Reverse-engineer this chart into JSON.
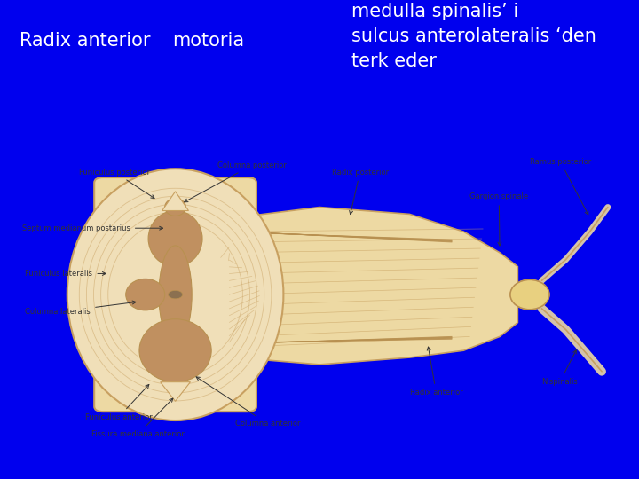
{
  "bg_color": "#0000EE",
  "header_text_color": "#FFFFFF",
  "header_text1": "Radix anterior",
  "header_text2": "motoria",
  "header_text3": "medulla spinalis’ i\nsulcus anterolateralis ‘den\nterk eder",
  "header_fontsize": 15,
  "fig_width": 7.2,
  "fig_height": 5.4,
  "dpi": 100,
  "img_bg": "#FFFFFF",
  "cream": "#F0DFB8",
  "tan": "#C8A060",
  "light_tan": "#EDD9A3",
  "dark_tan": "#B89050",
  "gm_color": "#C09060",
  "ganglion_color": "#E8D080",
  "label_color": "#333333",
  "label_fs": 6.0
}
